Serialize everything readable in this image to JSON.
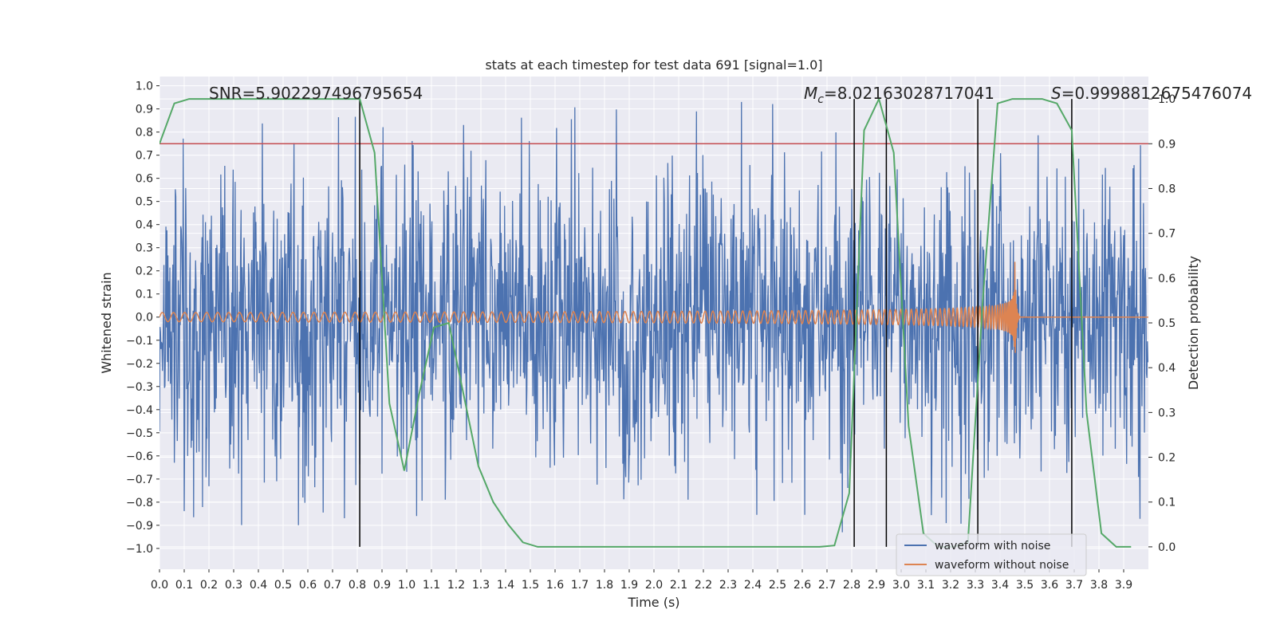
{
  "chart_data": {
    "type": "line",
    "title": "stats at each timestep for test data 691 [signal=1.0]",
    "xlabel": "Time (s)",
    "ylabel": "Whitened strain",
    "y2label": "Detection probability",
    "xlim": [
      0.0,
      4.0
    ],
    "ylim": [
      -1.09,
      1.04
    ],
    "y2lim": [
      -0.05,
      1.05
    ],
    "xticks": [
      0.0,
      0.1,
      0.2,
      0.3,
      0.4,
      0.5,
      0.6,
      0.7,
      0.8,
      0.9,
      1.0,
      1.1,
      1.2,
      1.3,
      1.4,
      1.5,
      1.6,
      1.7,
      1.8,
      1.9,
      2.0,
      2.1,
      2.2,
      2.3,
      2.4,
      2.5,
      2.6,
      2.7,
      2.8,
      2.9,
      3.0,
      3.1,
      3.2,
      3.3,
      3.4,
      3.5,
      3.6,
      3.7,
      3.8,
      3.9
    ],
    "xtick_labels": [
      "0.0",
      "0.1",
      "0.2",
      "0.3",
      "0.4",
      "0.5",
      "0.6",
      "0.7",
      "0.8",
      "0.9",
      "1.0",
      "1.1",
      "1.2",
      "1.3",
      "1.4",
      "1.5",
      "1.6",
      "1.7",
      "1.8",
      "1.9",
      "2.0",
      "2.1",
      "2.2",
      "2.3",
      "2.4",
      "2.5",
      "2.6",
      "2.7",
      "2.8",
      "2.9",
      "3.0",
      "3.1",
      "3.2",
      "3.3",
      "3.4",
      "3.5",
      "3.6",
      "3.7",
      "3.8",
      "3.9"
    ],
    "yticks": [
      1.0,
      0.9,
      0.8,
      0.7,
      0.6,
      0.5,
      0.4,
      0.3,
      0.2,
      0.1,
      0.0,
      -0.1,
      -0.2,
      -0.3,
      -0.4,
      -0.5,
      -0.6,
      -0.7,
      -0.8,
      -0.9,
      -1.0
    ],
    "ytick_labels": [
      "1.0",
      "0.9",
      "0.8",
      "0.7",
      "0.6",
      "0.5",
      "0.4",
      "0.3",
      "0.2",
      "0.1",
      "0.0",
      "−0.1",
      "−0.2",
      "−0.3",
      "−0.4",
      "−0.5",
      "−0.6",
      "−0.7",
      "−0.8",
      "−0.9",
      "−1.0"
    ],
    "y2ticks": [
      1.0,
      0.9,
      0.8,
      0.7,
      0.6,
      0.5,
      0.4,
      0.3,
      0.2,
      0.1,
      0.0
    ],
    "y2tick_labels": [
      "1.0",
      "0.9",
      "0.8",
      "0.7",
      "0.6",
      "0.5",
      "0.4",
      "0.3",
      "0.2",
      "0.1",
      "0.0"
    ],
    "grid": true,
    "legend_position": "bottom-right",
    "series": [
      {
        "name": "waveform with noise",
        "color": "#4c72b0",
        "kind": "noise",
        "duration": 4.0,
        "samples": 2000,
        "amplitude_typical": 0.3,
        "amplitude_peak": 0.93
      },
      {
        "name": "waveform without noise",
        "color": "#dd8452",
        "kind": "chirp",
        "duration": 4.0,
        "merger_time": 3.46,
        "f_start": 22,
        "amp_start": 0.02,
        "amp_peak": 0.24
      }
    ],
    "detection_probability": {
      "axis": "right",
      "color": "#55a868",
      "t": [
        0.0,
        0.06,
        0.12,
        0.18,
        0.24,
        0.3,
        0.36,
        0.42,
        0.48,
        0.54,
        0.6,
        0.66,
        0.72,
        0.78,
        0.81,
        0.87,
        0.93,
        0.99,
        1.05,
        1.11,
        1.17,
        1.23,
        1.29,
        1.35,
        1.41,
        1.47,
        1.53,
        1.59,
        1.65,
        1.71,
        1.77,
        1.83,
        1.89,
        1.95,
        2.01,
        2.07,
        2.13,
        2.19,
        2.25,
        2.31,
        2.37,
        2.43,
        2.49,
        2.55,
        2.61,
        2.67,
        2.73,
        2.79,
        2.85,
        2.91,
        2.97,
        3.03,
        3.09,
        3.15,
        3.21,
        3.27,
        3.33,
        3.39,
        3.45,
        3.51,
        3.57,
        3.63,
        3.69,
        3.75,
        3.81,
        3.87,
        3.93
      ],
      "values": [
        0.9,
        0.99,
        1.0,
        1.0,
        1.0,
        1.0,
        1.0,
        1.0,
        1.0,
        1.0,
        1.0,
        1.0,
        1.0,
        1.0,
        1.0,
        0.88,
        0.32,
        0.17,
        0.34,
        0.49,
        0.5,
        0.34,
        0.18,
        0.1,
        0.05,
        0.01,
        0.0,
        0.0,
        0.0,
        0.0,
        0.0,
        0.0,
        0.0,
        0.0,
        0.0,
        0.0,
        0.0,
        0.0,
        0.0,
        0.0,
        0.0,
        0.0,
        0.0,
        0.0,
        0.0,
        0.0,
        0.003,
        0.12,
        0.93,
        1.0,
        0.88,
        0.27,
        0.03,
        0.0,
        0.0,
        0.01,
        0.55,
        0.99,
        1.0,
        1.0,
        1.0,
        0.99,
        0.93,
        0.3,
        0.03,
        0.0,
        0.0
      ]
    },
    "threshold_line": {
      "axis": "right",
      "value": 0.9,
      "color": "#c44e52"
    },
    "vertical_lines": [
      0.81,
      2.81,
      2.94,
      3.31,
      3.69
    ],
    "annotations": [
      {
        "text": "SNR=5.902297496795654"
      },
      {
        "text_symbol": "M",
        "text_subscript": "c",
        "text_value": "=8.02163028717041"
      },
      {
        "text_symbol": "S",
        "text_value": "=0.9998812675476074"
      }
    ]
  }
}
